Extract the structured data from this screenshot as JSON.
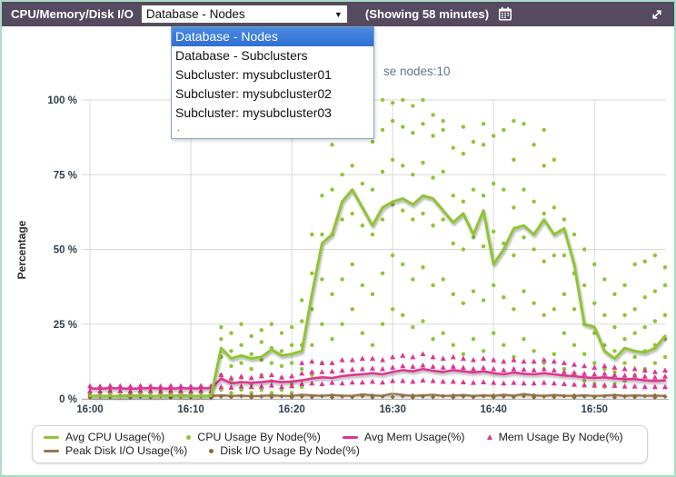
{
  "header": {
    "title": "CPU/Memory/Disk I/O",
    "dropdown": {
      "selected": "Database - Nodes",
      "options": [
        "Database - Nodes",
        "Database - Subclusters",
        "Subcluster: mysubcluster01",
        "Subcluster: mysubcluster02",
        "Subcluster: mysubcluster03",
        "."
      ],
      "selected_index": 0
    },
    "showing": "(Showing 58 minutes)"
  },
  "subtitle_partial": "se nodes:10",
  "colors": {
    "header_bg": "#554a5f",
    "widget_border": "#a8dcc6",
    "highlight_blue": "#3d7edb",
    "green": "#8fc435",
    "pink": "#de3590",
    "brown": "#97764a",
    "brown_dot": "#8a6d3e",
    "gridline": "#d9d9d9"
  },
  "chart_data": {
    "type": "line",
    "title": "",
    "xlabel": "",
    "ylabel": "Percentage",
    "ylim": [
      0,
      100
    ],
    "x_unit": "minutes after 16:00",
    "grid": true,
    "legend_position": "bottom",
    "y_ticks": [
      {
        "v": 0,
        "label": "0 %"
      },
      {
        "v": 25,
        "label": "25 %"
      },
      {
        "v": 50,
        "label": "50 %"
      },
      {
        "v": 75,
        "label": "75 %"
      },
      {
        "v": 100,
        "label": "100 %"
      }
    ],
    "x_ticks": [
      {
        "m": 0,
        "label": "16:00"
      },
      {
        "m": 10,
        "label": "16:10"
      },
      {
        "m": 20,
        "label": "16:20"
      },
      {
        "m": 30,
        "label": "16:30"
      },
      {
        "m": 40,
        "label": "16:40"
      },
      {
        "m": 50,
        "label": "16:50"
      }
    ],
    "series": [
      {
        "name": "Avg CPU Usage(%)",
        "type": "line",
        "color": "#8fc435",
        "width": 3,
        "values": [
          1,
          0.9,
          1,
          0.8,
          1,
          1.1,
          0.9,
          1,
          1.2,
          1,
          0.9,
          1,
          1,
          17,
          13.5,
          14.5,
          13.5,
          14,
          16.5,
          14.5,
          15,
          16,
          35,
          52,
          55,
          66,
          70,
          64,
          58,
          64,
          66,
          67,
          65,
          68,
          67,
          63,
          59,
          62,
          55,
          63,
          45,
          50,
          57,
          58,
          55,
          60,
          55,
          57,
          45,
          25,
          24,
          16,
          13.5,
          17,
          16,
          15.5,
          17,
          21
        ]
      },
      {
        "name": "CPU Usage By Node(%)",
        "type": "scatter",
        "marker": "circle",
        "color": "#8fc435",
        "points_by_minute": {
          "0": [
            0.8,
            1.5
          ],
          "1": [
            1.2
          ],
          "2": [
            1.8
          ],
          "3": [
            1
          ],
          "4": [
            1.5
          ],
          "5": [
            2
          ],
          "6": [
            1.2
          ],
          "7": [
            1.8,
            3
          ],
          "8": [
            1.5
          ],
          "9": [
            1,
            2.5
          ],
          "10": [
            1.5,
            3.5
          ],
          "11": [
            2
          ],
          "12": [
            1.5,
            4
          ],
          "13": [
            3,
            8,
            14,
            20,
            24
          ],
          "14": [
            2,
            6,
            11,
            16,
            22
          ],
          "15": [
            3,
            7,
            12,
            18,
            25
          ],
          "16": [
            2,
            5,
            10,
            15,
            21
          ],
          "17": [
            3,
            8,
            13,
            19,
            23
          ],
          "18": [
            2,
            6,
            12,
            17,
            25
          ],
          "19": [
            3,
            7,
            11,
            16,
            22
          ],
          "20": [
            2,
            5,
            12,
            18,
            24
          ],
          "21": [
            4,
            10,
            18,
            26,
            33
          ],
          "22": [
            8,
            18,
            30,
            42,
            55
          ],
          "23": [
            12,
            25,
            40,
            55,
            68
          ],
          "24": [
            20,
            35,
            55,
            70,
            85,
            97
          ],
          "25": [
            25,
            40,
            60,
            75,
            90,
            99
          ],
          "26": [
            30,
            45,
            62,
            78,
            92,
            100
          ],
          "27": [
            22,
            38,
            58,
            72,
            88,
            98
          ],
          "28": [
            18,
            35,
            55,
            70,
            86,
            97
          ],
          "29": [
            25,
            42,
            60,
            76,
            90,
            100
          ],
          "30": [
            30,
            48,
            65,
            80,
            93,
            99
          ],
          "31": [
            28,
            45,
            63,
            78,
            91,
            100
          ],
          "32": [
            24,
            40,
            60,
            75,
            89,
            98
          ],
          "33": [
            26,
            44,
            62,
            79,
            92,
            100
          ],
          "34": [
            20,
            38,
            58,
            74,
            88,
            95
          ],
          "35": [
            22,
            40,
            60,
            76,
            90,
            93
          ],
          "36": [
            18,
            35,
            52,
            68,
            84
          ],
          "37": [
            15,
            32,
            50,
            66,
            82,
            91
          ],
          "38": [
            20,
            36,
            54,
            70,
            86
          ],
          "39": [
            16,
            33,
            51,
            68,
            85,
            92
          ],
          "40": [
            22,
            38,
            56,
            72,
            88
          ],
          "41": [
            18,
            34,
            52,
            70,
            90
          ],
          "42": [
            14,
            30,
            48,
            64,
            80,
            93
          ],
          "43": [
            20,
            36,
            54,
            70,
            92
          ],
          "44": [
            16,
            32,
            50,
            66,
            85
          ],
          "45": [
            12,
            28,
            46,
            62,
            78,
            90
          ],
          "46": [
            15,
            30,
            48,
            64,
            80
          ],
          "47": [
            10,
            22,
            35,
            48,
            60
          ],
          "48": [
            8,
            18,
            30,
            42,
            55
          ],
          "49": [
            6,
            15,
            25,
            38,
            50
          ],
          "50": [
            5,
            12,
            22,
            32,
            45
          ],
          "51": [
            4,
            10,
            18,
            28,
            40
          ],
          "52": [
            5,
            9,
            16,
            24,
            35
          ],
          "53": [
            6,
            12,
            20,
            28,
            38
          ],
          "54": [
            8,
            14,
            22,
            30,
            45
          ],
          "55": [
            10,
            16,
            24,
            34,
            46
          ],
          "56": [
            12,
            18,
            26,
            36,
            48
          ],
          "57": [
            14,
            20,
            28,
            38,
            44
          ]
        }
      },
      {
        "name": "Avg Mem Usage(%)",
        "type": "line",
        "color": "#de3590",
        "width": 2.6,
        "values": [
          3.5,
          3.4,
          3.6,
          3.5,
          3.4,
          3.5,
          3.6,
          3.5,
          3.4,
          3.6,
          3.5,
          3.5,
          3.6,
          6.8,
          5.2,
          5.6,
          5.4,
          5.6,
          6,
          5.6,
          5.8,
          6.2,
          6.8,
          7.2,
          7,
          7.6,
          8,
          8.2,
          8.6,
          8.2,
          9,
          9.6,
          9.2,
          10,
          9.4,
          9,
          9.6,
          9.2,
          8.8,
          9.2,
          8.6,
          8.2,
          8.8,
          8.4,
          8.2,
          8.6,
          8.2,
          7.8,
          7.6,
          7.2,
          7,
          7.2,
          6.8,
          6.6,
          6.6,
          6.2,
          6,
          6.2
        ]
      },
      {
        "name": "Mem Usage By Node(%)",
        "type": "scatter",
        "marker": "triangle",
        "color": "#de3590",
        "points_by_minute": {
          "0": [
            2.6,
            4.3
          ],
          "1": [
            2.5,
            4.2
          ],
          "2": [
            2.7,
            4.4
          ],
          "3": [
            2.6,
            4.3
          ],
          "4": [
            2.5,
            4.2
          ],
          "5": [
            2.7,
            4.4
          ],
          "6": [
            2.6,
            4.3
          ],
          "7": [
            2.5,
            4.2
          ],
          "8": [
            2.7,
            4.4
          ],
          "9": [
            2.6,
            4.3
          ],
          "10": [
            2.5,
            4.2
          ],
          "11": [
            2.7,
            4.4
          ],
          "12": [
            2.6,
            4.3
          ],
          "13": [
            4,
            8
          ],
          "14": [
            3.8,
            7
          ],
          "15": [
            4.2,
            7.5
          ],
          "16": [
            4,
            7
          ],
          "17": [
            4.2,
            7.6
          ],
          "18": [
            4.5,
            8
          ],
          "19": [
            4,
            7.2
          ],
          "20": [
            4.3,
            7.6
          ],
          "21": [
            5,
            8.5,
            12
          ],
          "22": [
            5.2,
            9,
            12.5
          ],
          "23": [
            5,
            9,
            12
          ],
          "24": [
            5.4,
            9.2,
            12
          ],
          "25": [
            5.2,
            9.5,
            13
          ],
          "26": [
            5.5,
            9.8,
            13
          ],
          "27": [
            5.5,
            10,
            13.5
          ],
          "28": [
            5.8,
            10.2,
            13.5
          ],
          "29": [
            5.5,
            10,
            13
          ],
          "30": [
            6,
            10.5,
            14
          ],
          "31": [
            6,
            11,
            14.5
          ],
          "32": [
            5.8,
            10.8,
            14
          ],
          "33": [
            6.2,
            11.2,
            15
          ],
          "34": [
            6,
            10.8,
            14
          ],
          "35": [
            5.8,
            10.5,
            13.5
          ],
          "36": [
            5.8,
            10.8,
            14
          ],
          "37": [
            5.6,
            10.4,
            13.5
          ],
          "38": [
            5.4,
            10,
            13
          ],
          "39": [
            5.6,
            10.4,
            13.5
          ],
          "40": [
            5.4,
            10,
            13
          ],
          "41": [
            5.2,
            9.6,
            12.5
          ],
          "42": [
            5.4,
            10,
            13
          ],
          "43": [
            5.2,
            9.8,
            12.5
          ],
          "44": [
            5.2,
            9.6,
            12.5
          ],
          "45": [
            5.4,
            10,
            13
          ],
          "46": [
            5.2,
            9.6,
            12.5
          ],
          "47": [
            5,
            9,
            12
          ],
          "48": [
            4.8,
            8.8,
            11.5
          ],
          "49": [
            4.6,
            8.4,
            11
          ],
          "50": [
            4.5,
            8.2,
            10.5
          ],
          "51": [
            4.6,
            8.4,
            11
          ],
          "52": [
            4.4,
            8,
            10.5
          ],
          "53": [
            4.2,
            7.8,
            10
          ],
          "54": [
            4.2,
            7.8,
            10
          ],
          "55": [
            4,
            7.5,
            9.5
          ],
          "56": [
            4,
            7.2,
            9
          ],
          "57": [
            4,
            7.5,
            9.5
          ]
        }
      },
      {
        "name": "Peak Disk I/O Usage(%)",
        "type": "line",
        "color": "#97764a",
        "width": 2.4,
        "values": [
          1,
          1.1,
          0.9,
          1,
          1.2,
          1,
          0.9,
          1.1,
          1,
          1.3,
          1,
          0.9,
          1,
          1.2,
          1,
          1.1,
          0.9,
          1,
          1.2,
          1,
          1,
          1.4,
          1.2,
          1,
          1.3,
          1.1,
          1,
          1.5,
          1.2,
          1,
          1.8,
          1.3,
          1,
          1.2,
          1.4,
          1,
          1.1,
          1.3,
          1,
          1.2,
          1,
          1.4,
          1.1,
          1.6,
          1.2,
          1,
          1.3,
          1.1,
          1,
          1.2,
          1,
          1.1,
          1.3,
          1,
          1.2,
          1,
          1.1,
          1
        ]
      },
      {
        "name": "Disk I/O Usage By Node(%)",
        "type": "scatter",
        "marker": "diamond",
        "color": "#8a6d3e",
        "points_by_minute": {
          "0": [
            0.5,
            1.1
          ],
          "1": [
            0.8
          ],
          "2": [
            0.6
          ],
          "3": [
            0.9
          ],
          "4": [
            0.5,
            1.1
          ],
          "5": [
            0.8
          ],
          "6": [
            0.6
          ],
          "7": [
            0.9
          ],
          "8": [
            0.5,
            1.1
          ],
          "9": [
            0.8
          ],
          "10": [
            0.6
          ],
          "11": [
            0.9
          ],
          "12": [
            0.5,
            1.1
          ],
          "13": [
            0.8
          ],
          "14": [
            0.6
          ],
          "15": [
            0.9
          ],
          "16": [
            0.5,
            1.1
          ],
          "17": [
            0.8
          ],
          "18": [
            0.6
          ],
          "19": [
            0.9
          ],
          "20": [
            0.5,
            1.1
          ],
          "21": [
            0.8
          ],
          "22": [
            0.6
          ],
          "23": [
            0.9
          ],
          "24": [
            0.5,
            1.1
          ],
          "25": [
            0.8
          ],
          "26": [
            0.6
          ],
          "27": [
            0.9
          ],
          "28": [
            0.5,
            1.1
          ],
          "29": [
            0.8
          ],
          "30": [
            0.6
          ],
          "31": [
            0.9
          ],
          "32": [
            0.5,
            1.1
          ],
          "33": [
            0.8
          ],
          "34": [
            0.6
          ],
          "35": [
            0.9
          ],
          "36": [
            0.5,
            1.1
          ],
          "37": [
            0.8
          ],
          "38": [
            0.6
          ],
          "39": [
            0.9
          ],
          "40": [
            0.5,
            1.1
          ],
          "41": [
            0.8
          ],
          "42": [
            0.6
          ],
          "43": [
            0.9
          ],
          "44": [
            0.5,
            1.1
          ],
          "45": [
            0.8
          ],
          "46": [
            0.6
          ],
          "47": [
            0.9
          ],
          "48": [
            0.5,
            1.1
          ],
          "49": [
            0.8
          ],
          "50": [
            0.6
          ],
          "51": [
            0.9
          ],
          "52": [
            0.5,
            1.1
          ],
          "53": [
            0.8
          ],
          "54": [
            0.6
          ],
          "55": [
            0.9
          ],
          "56": [
            0.5,
            1.1
          ],
          "57": [
            0.8
          ]
        }
      }
    ]
  },
  "legend": {
    "rows": [
      [
        {
          "marker": "line",
          "color": "#8fc435",
          "label": "Avg CPU Usage(%)"
        },
        {
          "marker": "dot",
          "color": "#8fc435",
          "label": "CPU Usage By Node(%)"
        },
        {
          "marker": "line",
          "color": "#de3590",
          "label": "Avg Mem Usage(%)"
        },
        {
          "marker": "triangle",
          "color": "#de3590",
          "label": "Mem Usage By Node(%)"
        }
      ],
      [
        {
          "marker": "line",
          "color": "#97764a",
          "label": "Peak Disk I/O Usage(%)"
        },
        {
          "marker": "dot",
          "color": "#8a6d3e",
          "label": "Disk I/O Usage By Node(%)"
        }
      ]
    ]
  }
}
